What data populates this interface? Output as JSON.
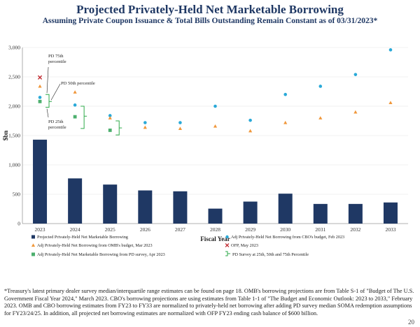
{
  "title": "Projected Privately-Held Net Marketable Borrowing",
  "subtitle": "Assuming Private Coupon Issuance & Total Bills Outstanding Remain Constant as of 03/31/2023*",
  "chart_data": {
    "type": "bar",
    "ylabel": "$bn",
    "xlabel": "Fiscal Year",
    "ylim": [
      0,
      3000
    ],
    "yticks": [
      "0",
      "500",
      "1,000",
      "1,500",
      "2,000",
      "2,500",
      "3,000"
    ],
    "ytick_values": [
      0,
      500,
      1000,
      1500,
      2000,
      2500,
      3000
    ],
    "grid": true,
    "categories": [
      "2023",
      "2024",
      "2025",
      "2026",
      "2027",
      "2028",
      "2029",
      "2030",
      "2031",
      "2032",
      "2033"
    ],
    "bars": {
      "name": "Projected Privately-Held Net Marketable Borrowing",
      "color": "#1f3864",
      "values": [
        1430,
        770,
        665,
        565,
        550,
        255,
        375,
        510,
        335,
        335,
        360
      ]
    },
    "cbo": {
      "name": "Adj Privately-Held Net Borrowing from CBO's budget, Feb 2023",
      "color": "#29a9d8",
      "values": [
        2150,
        2020,
        1840,
        1720,
        1720,
        2000,
        1760,
        2200,
        2340,
        2540,
        2960
      ]
    },
    "omb": {
      "name": "Adj Privately-Held Net Borrowing from OMB's budget, Mar 2023",
      "color": "#f0973a",
      "values": [
        2340,
        2240,
        1800,
        1640,
        1620,
        1660,
        1580,
        1720,
        1800,
        1900,
        2060
      ]
    },
    "ofp": {
      "name": "OFP, May 2023",
      "color": "#c0262d",
      "category": "2023",
      "value": 2490
    },
    "pd_survey": {
      "name": "Adj Privately-Held Net Marketable Borrowing from PD survey, Apr 2023",
      "color": "#4caf6e",
      "categories": [
        "2023",
        "2024",
        "2025"
      ],
      "values": [
        2080,
        1820,
        1590
      ]
    },
    "pd_range": {
      "name": "PD Survey at 25th, 50th and 75th Percentile",
      "color": "#2eaa4a",
      "categories": [
        "2023",
        "2024",
        "2025"
      ],
      "low": [
        1980,
        1620,
        1510
      ],
      "mid": [
        2080,
        1830,
        1630
      ],
      "high": [
        2200,
        2000,
        1750
      ]
    },
    "annotations": {
      "p75": "PD 75th percentile",
      "p50": "PD 50th percentile",
      "p25": "PD 25th percentile"
    }
  },
  "footnote": "*Treasury's latest primary dealer survey median/interquartile range estimates can be found on page 18. OMB's borrowing projections are from Table S-1 of \"Budget of The U.S. Government Fiscal Year 2024,\" March 2023. CBO's borrowing projections are using estimates from Table 1-1 of \"The Budget and Economic Outlook: 2023 to 2033,\" February 2023. OMB and CBO borrowing estimates from FY23 to FY33 are normalized to privately-held net borrowing after adding PD survey median SOMA redemption assumptions for FY23/24/25. In addition, all projected net borrowing estimates are normalized with OFP FY23 ending cash balance of $600 billion.",
  "page_number": "20"
}
